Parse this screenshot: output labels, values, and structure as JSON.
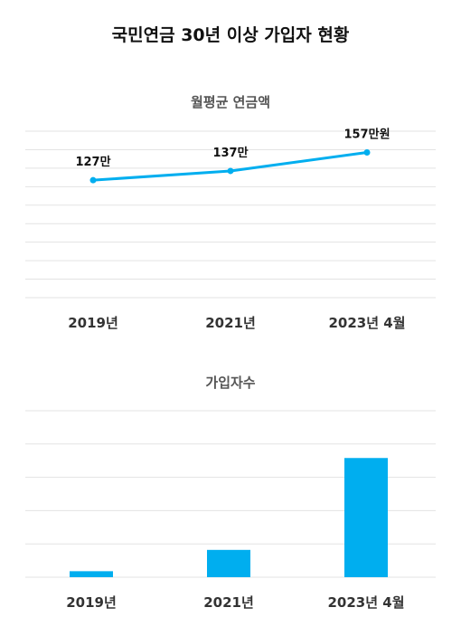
{
  "title": "국민연금 30년 이상 가입자 현황",
  "colors": {
    "accent": "#00aeef",
    "grid": "#e3e3e3",
    "text": "#111111",
    "muted": "#555555"
  },
  "chart_data": [
    {
      "type": "line",
      "title": "월평균 연금액",
      "categories": [
        "2019년",
        "2021년",
        "2023년 4월"
      ],
      "values": [
        127,
        137,
        157
      ],
      "data_labels": [
        "127만",
        "137만",
        "157만원"
      ],
      "ylim": [
        0,
        180
      ],
      "grid": true
    },
    {
      "type": "bar",
      "title": "가입자수",
      "categories": [
        "2019년",
        "2021년",
        "2023년 4월"
      ],
      "values": [
        0.9,
        4.1,
        17.9
      ],
      "ylim": [
        0,
        25
      ],
      "grid": true
    }
  ]
}
